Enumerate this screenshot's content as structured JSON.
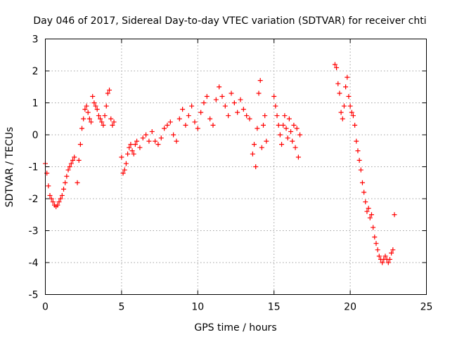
{
  "chart_data": {
    "type": "scatter",
    "title": "Day 046 of 2017, Sidereal Day-to-day VTEC variation (SDTVAR) for receiver chti",
    "xlabel": "GPS time / hours",
    "ylabel": "SDTVAR / TECUs",
    "xlim": [
      0,
      25
    ],
    "ylim": [
      -5,
      3
    ],
    "xticks": [
      "0",
      "5",
      "10",
      "15",
      "20",
      "25"
    ],
    "yticks": [
      "-5",
      "-4",
      "-3",
      "-2",
      "-1",
      "0",
      "1",
      "2",
      "3"
    ],
    "grid": true,
    "marker": "+",
    "color": "#ff0000",
    "series": [
      {
        "name": "SDTVAR",
        "x": [
          0.0,
          0.1,
          0.2,
          0.3,
          0.4,
          0.5,
          0.6,
          0.7,
          0.8,
          0.9,
          1.0,
          1.1,
          1.2,
          1.3,
          1.4,
          1.5,
          1.6,
          1.7,
          1.8,
          1.9,
          2.1,
          2.2,
          2.3,
          2.4,
          2.5,
          2.6,
          2.7,
          2.8,
          2.9,
          3.0,
          3.1,
          3.2,
          3.3,
          3.4,
          3.5,
          3.6,
          3.7,
          3.8,
          3.9,
          4.0,
          4.1,
          4.2,
          4.3,
          4.4,
          4.5,
          5.0,
          5.1,
          5.2,
          5.3,
          5.4,
          5.5,
          5.6,
          5.7,
          5.8,
          5.9,
          6.0,
          6.2,
          6.4,
          6.6,
          6.8,
          7.0,
          7.2,
          7.4,
          7.6,
          7.8,
          8.0,
          8.2,
          8.4,
          8.6,
          8.8,
          9.0,
          9.2,
          9.4,
          9.6,
          9.8,
          10.0,
          10.2,
          10.4,
          10.6,
          10.8,
          11.0,
          11.2,
          11.4,
          11.6,
          11.8,
          12.0,
          12.2,
          12.4,
          12.6,
          12.8,
          13.0,
          13.2,
          13.4,
          13.6,
          13.7,
          13.8,
          13.9,
          14.0,
          14.1,
          14.2,
          14.3,
          14.4,
          14.5,
          15.0,
          15.1,
          15.2,
          15.3,
          15.4,
          15.5,
          15.6,
          15.7,
          15.8,
          15.9,
          16.0,
          16.1,
          16.2,
          16.3,
          16.4,
          16.5,
          16.6,
          16.7,
          19.0,
          19.1,
          19.2,
          19.3,
          19.4,
          19.5,
          19.6,
          19.7,
          19.8,
          19.9,
          20.0,
          20.1,
          20.2,
          20.3,
          20.4,
          20.5,
          20.6,
          20.7,
          20.8,
          20.9,
          21.0,
          21.1,
          21.2,
          21.3,
          21.4,
          21.5,
          21.6,
          21.7,
          21.8,
          21.9,
          22.0,
          22.1,
          22.2,
          22.3,
          22.4,
          22.5,
          22.6,
          22.7,
          22.8,
          22.9
        ],
        "y": [
          -0.9,
          -1.2,
          -1.6,
          -1.9,
          -2.0,
          -2.1,
          -2.2,
          -2.25,
          -2.2,
          -2.1,
          -2.0,
          -1.9,
          -1.7,
          -1.5,
          -1.3,
          -1.1,
          -1.0,
          -0.9,
          -0.8,
          -0.7,
          -1.5,
          -0.8,
          -0.3,
          0.2,
          0.5,
          0.8,
          0.9,
          0.7,
          0.5,
          0.4,
          1.2,
          1.0,
          0.9,
          0.8,
          0.6,
          0.5,
          0.4,
          0.3,
          0.6,
          0.9,
          1.3,
          1.4,
          0.5,
          0.3,
          0.4,
          -0.7,
          -1.2,
          -1.1,
          -0.9,
          -0.6,
          -0.4,
          -0.3,
          -0.5,
          -0.6,
          -0.3,
          -0.2,
          -0.4,
          -0.1,
          0.0,
          -0.2,
          0.1,
          -0.2,
          -0.3,
          -0.1,
          0.2,
          0.3,
          0.4,
          0.0,
          -0.2,
          0.5,
          0.8,
          0.3,
          0.6,
          0.9,
          0.4,
          0.2,
          0.7,
          1.0,
          1.2,
          0.5,
          0.3,
          1.1,
          1.5,
          1.2,
          0.9,
          0.6,
          1.3,
          1.0,
          0.7,
          1.1,
          0.8,
          0.6,
          0.5,
          -0.6,
          -0.3,
          -1.0,
          0.2,
          1.3,
          1.7,
          -0.4,
          0.3,
          0.6,
          -0.2,
          1.2,
          0.9,
          0.6,
          0.3,
          0.0,
          -0.3,
          0.3,
          0.6,
          0.2,
          -0.1,
          0.5,
          0.1,
          -0.2,
          0.3,
          -0.4,
          0.2,
          -0.7,
          0.0,
          2.2,
          2.1,
          1.6,
          1.3,
          0.7,
          0.5,
          0.9,
          1.5,
          1.8,
          1.2,
          0.9,
          0.7,
          0.6,
          0.3,
          -0.2,
          -0.5,
          -0.8,
          -1.1,
          -1.5,
          -1.8,
          -2.1,
          -2.4,
          -2.3,
          -2.6,
          -2.5,
          -2.9,
          -3.2,
          -3.4,
          -3.6,
          -3.8,
          -3.9,
          -4.0,
          -3.9,
          -3.8,
          -3.9,
          -4.0,
          -3.9,
          -3.7,
          -3.6,
          -2.5
        ]
      }
    ]
  }
}
